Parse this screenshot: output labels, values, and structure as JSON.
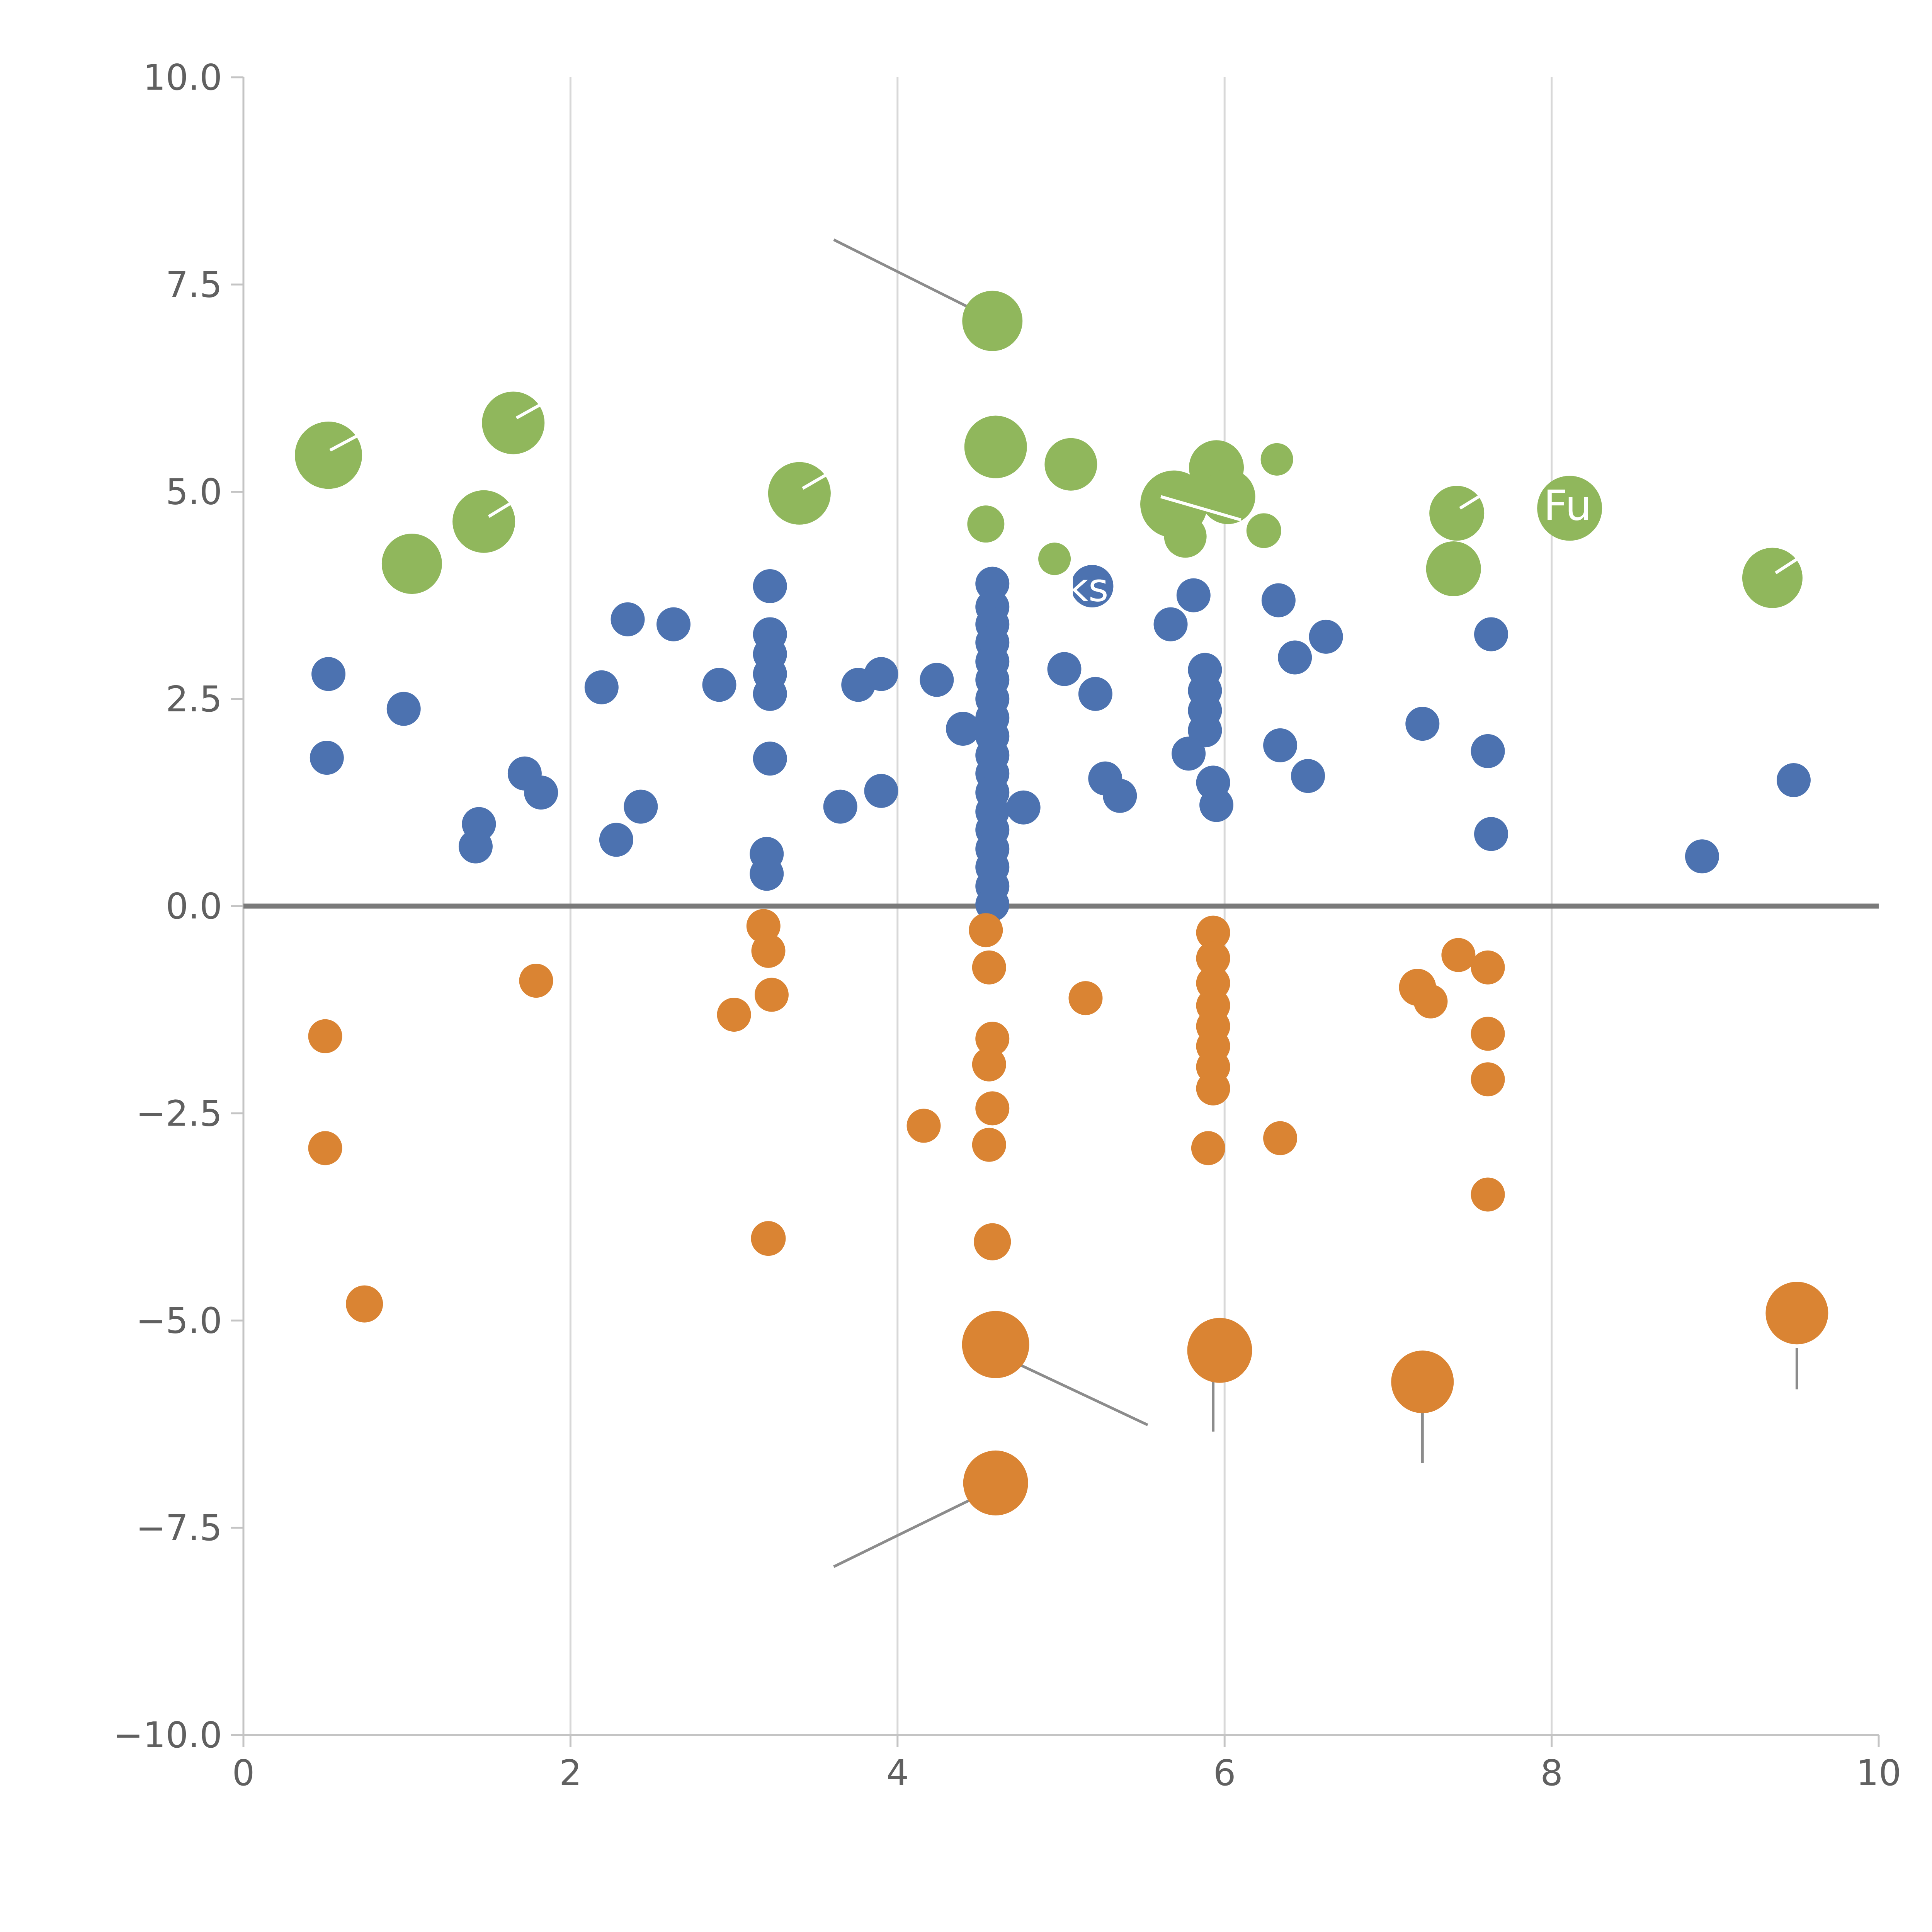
{
  "chart_data": {
    "type": "scatter",
    "title": "",
    "xlabel": "",
    "ylabel": "",
    "xlim": [
      0,
      10
    ],
    "ylim": [
      -10,
      10
    ],
    "grid_x": [
      2,
      4,
      6,
      8
    ],
    "zero_line_y": 0,
    "x_ticks": [
      {
        "v": 0,
        "label": "0"
      },
      {
        "v": 2,
        "label": "2"
      },
      {
        "v": 4,
        "label": "4"
      },
      {
        "v": 6,
        "label": "6"
      },
      {
        "v": 8,
        "label": "8"
      },
      {
        "v": 10,
        "label": "10"
      }
    ],
    "y_ticks": [
      {
        "v": 10.0,
        "label": "10.0"
      },
      {
        "v": 7.5,
        "label": "7.5"
      },
      {
        "v": 5.0,
        "label": "5.0"
      },
      {
        "v": 2.5,
        "label": "2.5"
      },
      {
        "v": 0.0,
        "label": "0.0"
      },
      {
        "v": -2.5,
        "label": "−2.5"
      },
      {
        "v": -5.0,
        "label": "−5.0"
      },
      {
        "v": -7.5,
        "label": "−7.5"
      },
      {
        "v": -10.0,
        "label": "−10.0"
      }
    ],
    "colors": {
      "green": "#90B75C",
      "blue": "#4C72B0",
      "orange": "#DA8433",
      "grid": "#D8D8D8",
      "spine": "#C4C4C4",
      "tick_label": "#606060",
      "zero_line": "#7A7A7A",
      "leader_line": "#8C8C8C",
      "annotation_text": "#FFFFFF",
      "white_mark": "#FFFFFF"
    },
    "series": [
      {
        "name": "green",
        "color": "#90B75C",
        "points": [
          {
            "x": 0.52,
            "y": 5.44,
            "r": 87
          },
          {
            "x": 1.03,
            "y": 4.13,
            "r": 78
          },
          {
            "x": 1.47,
            "y": 4.64,
            "r": 81
          },
          {
            "x": 1.65,
            "y": 5.83,
            "r": 81
          },
          {
            "x": 3.4,
            "y": 4.98,
            "r": 81
          },
          {
            "x": 4.58,
            "y": 7.06,
            "r": 78
          },
          {
            "x": 4.6,
            "y": 5.54,
            "r": 81
          },
          {
            "x": 4.54,
            "y": 4.61,
            "r": 48
          },
          {
            "x": 5.06,
            "y": 5.33,
            "r": 68
          },
          {
            "x": 4.96,
            "y": 4.19,
            "r": 42
          },
          {
            "x": 5.69,
            "y": 4.85,
            "r": 87
          },
          {
            "x": 5.95,
            "y": 5.29,
            "r": 71
          },
          {
            "x": 6.02,
            "y": 4.94,
            "r": 71
          },
          {
            "x": 5.76,
            "y": 4.46,
            "r": 55
          },
          {
            "x": 6.32,
            "y": 5.39,
            "r": 42
          },
          {
            "x": 6.24,
            "y": 4.53,
            "r": 45
          },
          {
            "x": 7.42,
            "y": 4.74,
            "r": 71
          },
          {
            "x": 7.4,
            "y": 4.07,
            "r": 71
          },
          {
            "x": 8.11,
            "y": 4.8,
            "r": 84
          },
          {
            "x": 9.35,
            "y": 3.96,
            "r": 78
          }
        ]
      },
      {
        "name": "blue",
        "color": "#4C72B0",
        "points": [
          {
            "x": 0.52,
            "y": 2.8,
            "r": 44
          },
          {
            "x": 0.51,
            "y": 1.79,
            "r": 44
          },
          {
            "x": 0.98,
            "y": 2.38,
            "r": 44
          },
          {
            "x": 1.44,
            "y": 0.99,
            "r": 44
          },
          {
            "x": 1.42,
            "y": 0.72,
            "r": 44
          },
          {
            "x": 1.72,
            "y": 1.6,
            "r": 44
          },
          {
            "x": 1.82,
            "y": 1.37,
            "r": 44
          },
          {
            "x": 2.19,
            "y": 2.64,
            "r": 44
          },
          {
            "x": 2.28,
            "y": 0.8,
            "r": 44
          },
          {
            "x": 2.35,
            "y": 3.46,
            "r": 44
          },
          {
            "x": 2.43,
            "y": 1.2,
            "r": 44
          },
          {
            "x": 2.63,
            "y": 3.4,
            "r": 44
          },
          {
            "x": 2.91,
            "y": 2.67,
            "r": 44
          },
          {
            "x": 3.22,
            "y": 3.86,
            "r": 44
          },
          {
            "x": 3.22,
            "y": 3.28,
            "r": 44
          },
          {
            "x": 3.22,
            "y": 3.04,
            "r": 44
          },
          {
            "x": 3.22,
            "y": 2.8,
            "r": 44
          },
          {
            "x": 3.22,
            "y": 2.56,
            "r": 44
          },
          {
            "x": 3.22,
            "y": 1.78,
            "r": 44
          },
          {
            "x": 3.2,
            "y": 0.63,
            "r": 44
          },
          {
            "x": 3.2,
            "y": 0.39,
            "r": 44
          },
          {
            "x": 3.65,
            "y": 1.2,
            "r": 44
          },
          {
            "x": 3.76,
            "y": 2.67,
            "r": 44
          },
          {
            "x": 3.9,
            "y": 2.8,
            "r": 44
          },
          {
            "x": 3.9,
            "y": 1.39,
            "r": 44
          },
          {
            "x": 4.24,
            "y": 2.73,
            "r": 44
          },
          {
            "x": 4.4,
            "y": 2.14,
            "r": 44
          },
          {
            "x": 4.58,
            "y": 3.89,
            "r": 44
          },
          {
            "x": 4.58,
            "y": 3.61,
            "r": 44
          },
          {
            "x": 4.58,
            "y": 3.4,
            "r": 44
          },
          {
            "x": 4.58,
            "y": 3.18,
            "r": 44
          },
          {
            "x": 4.58,
            "y": 2.95,
            "r": 44
          },
          {
            "x": 4.58,
            "y": 2.73,
            "r": 44
          },
          {
            "x": 4.58,
            "y": 2.5,
            "r": 44
          },
          {
            "x": 4.58,
            "y": 2.27,
            "r": 44
          },
          {
            "x": 4.58,
            "y": 2.05,
            "r": 44
          },
          {
            "x": 4.58,
            "y": 1.82,
            "r": 44
          },
          {
            "x": 4.58,
            "y": 1.6,
            "r": 44
          },
          {
            "x": 4.58,
            "y": 1.37,
            "r": 44
          },
          {
            "x": 4.58,
            "y": 1.14,
            "r": 44
          },
          {
            "x": 4.58,
            "y": 0.92,
            "r": 44
          },
          {
            "x": 4.58,
            "y": 0.69,
            "r": 44
          },
          {
            "x": 4.58,
            "y": 0.47,
            "r": 44
          },
          {
            "x": 4.58,
            "y": 0.24,
            "r": 44
          },
          {
            "x": 4.58,
            "y": 0.02,
            "r": 44
          },
          {
            "x": 4.77,
            "y": 1.19,
            "r": 44
          },
          {
            "x": 5.02,
            "y": 2.86,
            "r": 44
          },
          {
            "x": 5.19,
            "y": 3.86,
            "r": 55
          },
          {
            "x": 5.21,
            "y": 2.56,
            "r": 44
          },
          {
            "x": 5.27,
            "y": 1.54,
            "r": 44
          },
          {
            "x": 5.36,
            "y": 1.33,
            "r": 44
          },
          {
            "x": 5.67,
            "y": 3.4,
            "r": 44
          },
          {
            "x": 5.81,
            "y": 3.75,
            "r": 44
          },
          {
            "x": 5.88,
            "y": 2.85,
            "r": 44
          },
          {
            "x": 5.88,
            "y": 2.6,
            "r": 44
          },
          {
            "x": 5.88,
            "y": 2.36,
            "r": 44
          },
          {
            "x": 5.88,
            "y": 2.12,
            "r": 44
          },
          {
            "x": 5.78,
            "y": 1.84,
            "r": 44
          },
          {
            "x": 5.93,
            "y": 1.49,
            "r": 44
          },
          {
            "x": 5.95,
            "y": 1.22,
            "r": 44
          },
          {
            "x": 6.33,
            "y": 3.69,
            "r": 44
          },
          {
            "x": 6.43,
            "y": 3.0,
            "r": 44
          },
          {
            "x": 6.34,
            "y": 1.94,
            "r": 44
          },
          {
            "x": 6.51,
            "y": 1.57,
            "r": 44
          },
          {
            "x": 6.62,
            "y": 3.25,
            "r": 44
          },
          {
            "x": 7.21,
            "y": 2.2,
            "r": 44
          },
          {
            "x": 7.63,
            "y": 3.28,
            "r": 44
          },
          {
            "x": 7.61,
            "y": 1.87,
            "r": 44
          },
          {
            "x": 7.63,
            "y": 0.87,
            "r": 44
          },
          {
            "x": 8.92,
            "y": 0.6,
            "r": 44
          },
          {
            "x": 9.48,
            "y": 1.52,
            "r": 44
          }
        ]
      },
      {
        "name": "orange",
        "color": "#DA8433",
        "points": [
          {
            "x": 0.5,
            "y": -1.57,
            "r": 44
          },
          {
            "x": 0.5,
            "y": -2.92,
            "r": 44
          },
          {
            "x": 0.74,
            "y": -4.8,
            "r": 48
          },
          {
            "x": 1.79,
            "y": -0.9,
            "r": 44
          },
          {
            "x": 3.0,
            "y": -1.31,
            "r": 44
          },
          {
            "x": 3.18,
            "y": -0.24,
            "r": 44
          },
          {
            "x": 3.21,
            "y": -0.54,
            "r": 44
          },
          {
            "x": 3.23,
            "y": -1.07,
            "r": 44
          },
          {
            "x": 3.21,
            "y": -4.01,
            "r": 45
          },
          {
            "x": 4.16,
            "y": -2.65,
            "r": 44
          },
          {
            "x": 4.54,
            "y": -0.29,
            "r": 44
          },
          {
            "x": 4.56,
            "y": -0.74,
            "r": 44
          },
          {
            "x": 4.58,
            "y": -1.6,
            "r": 44
          },
          {
            "x": 4.56,
            "y": -1.91,
            "r": 44
          },
          {
            "x": 4.58,
            "y": -2.44,
            "r": 44
          },
          {
            "x": 4.56,
            "y": -2.88,
            "r": 44
          },
          {
            "x": 4.58,
            "y": -4.05,
            "r": 48
          },
          {
            "x": 4.6,
            "y": -5.29,
            "r": 87
          },
          {
            "x": 4.6,
            "y": -6.96,
            "r": 84
          },
          {
            "x": 5.15,
            "y": -1.11,
            "r": 44
          },
          {
            "x": 5.93,
            "y": -0.32,
            "r": 44
          },
          {
            "x": 5.93,
            "y": -0.63,
            "r": 44
          },
          {
            "x": 5.93,
            "y": -0.93,
            "r": 44
          },
          {
            "x": 5.93,
            "y": -1.2,
            "r": 44
          },
          {
            "x": 5.93,
            "y": -1.45,
            "r": 44
          },
          {
            "x": 5.93,
            "y": -1.69,
            "r": 44
          },
          {
            "x": 5.93,
            "y": -1.94,
            "r": 44
          },
          {
            "x": 5.93,
            "y": -2.2,
            "r": 44
          },
          {
            "x": 5.9,
            "y": -2.92,
            "r": 44
          },
          {
            "x": 5.97,
            "y": -5.36,
            "r": 84
          },
          {
            "x": 6.34,
            "y": -2.8,
            "r": 44
          },
          {
            "x": 7.18,
            "y": -0.98,
            "r": 48
          },
          {
            "x": 7.26,
            "y": -1.15,
            "r": 44
          },
          {
            "x": 7.43,
            "y": -0.59,
            "r": 44
          },
          {
            "x": 7.61,
            "y": -0.74,
            "r": 44
          },
          {
            "x": 7.61,
            "y": -1.54,
            "r": 44
          },
          {
            "x": 7.61,
            "y": -2.09,
            "r": 44
          },
          {
            "x": 7.61,
            "y": -3.48,
            "r": 44
          },
          {
            "x": 7.21,
            "y": -5.74,
            "r": 81
          },
          {
            "x": 9.5,
            "y": -4.91,
            "r": 81
          }
        ]
      }
    ],
    "leader_lines": [
      {
        "x1": 3.61,
        "y1": 8.04,
        "x2": 4.44,
        "y2": 7.22
      },
      {
        "x1": 4.69,
        "y1": -5.48,
        "x2": 5.53,
        "y2": -6.26
      },
      {
        "x1": 4.47,
        "y1": -7.14,
        "x2": 3.61,
        "y2": -7.97
      },
      {
        "x1": 5.93,
        "y1": -5.6,
        "x2": 5.93,
        "y2": -6.34
      },
      {
        "x1": 7.21,
        "y1": -6.08,
        "x2": 7.21,
        "y2": -6.72
      },
      {
        "x1": 9.5,
        "y1": -5.33,
        "x2": 9.5,
        "y2": -5.83
      }
    ],
    "white_marks": [
      {
        "x1": 0.53,
        "y1": 5.5,
        "x2": 0.72,
        "y2": 5.7
      },
      {
        "x1": 1.5,
        "y1": 4.7,
        "x2": 1.7,
        "y2": 4.94
      },
      {
        "x1": 1.67,
        "y1": 5.89,
        "x2": 1.88,
        "y2": 6.12
      },
      {
        "x1": 3.42,
        "y1": 5.04,
        "x2": 3.63,
        "y2": 5.28
      },
      {
        "x1": 5.61,
        "y1": 4.94,
        "x2": 6.1,
        "y2": 4.66
      },
      {
        "x1": 7.44,
        "y1": 4.8,
        "x2": 7.62,
        "y2": 5.02
      },
      {
        "x1": 9.37,
        "y1": 4.02,
        "x2": 9.55,
        "y2": 4.25
      },
      {
        "x1": 4.83,
        "y1": 3.96,
        "x2": 5.0,
        "y2": 3.96
      }
    ],
    "annotations": [
      {
        "text": "Fu",
        "x": 7.95,
        "y": 4.66,
        "size": 108
      },
      {
        "text": "ks",
        "x": 5.03,
        "y": 3.68,
        "size": 100
      }
    ],
    "legend": null,
    "grid": "vertical-only"
  }
}
